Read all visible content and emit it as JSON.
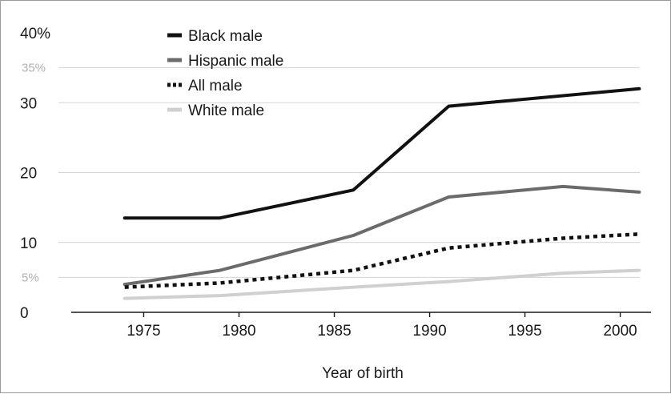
{
  "chart_data": {
    "type": "line",
    "xlabel": "Year of birth",
    "ylabel": "",
    "x_ticks": [
      1975,
      1980,
      1985,
      1990,
      1995,
      2000
    ],
    "xlim": [
      1971.2,
      2002.2
    ],
    "ylim": [
      0,
      40
    ],
    "y_ticks": [
      {
        "value": 0,
        "label": "0",
        "style": "major"
      },
      {
        "value": 5,
        "label": "5%",
        "style": "minor"
      },
      {
        "value": 10,
        "label": "10",
        "style": "major"
      },
      {
        "value": 20,
        "label": "20",
        "style": "major"
      },
      {
        "value": 30,
        "label": "30",
        "style": "major"
      },
      {
        "value": 35,
        "label": "35%",
        "style": "minor"
      },
      {
        "value": 40,
        "label": "40%",
        "style": "major"
      }
    ],
    "gridlines": [
      5,
      10,
      20,
      30,
      35
    ],
    "legend_position": "top-left",
    "series": [
      {
        "name": "Black male",
        "color": "#111111",
        "dash": "solid",
        "points": [
          [
            1974,
            13.5
          ],
          [
            1979,
            13.5
          ],
          [
            1986,
            17.5
          ],
          [
            1991,
            29.5
          ],
          [
            2001,
            32.0
          ]
        ]
      },
      {
        "name": "Hispanic male",
        "color": "#6b6b6b",
        "dash": "solid",
        "points": [
          [
            1974,
            4.0
          ],
          [
            1979,
            6.0
          ],
          [
            1986,
            11.0
          ],
          [
            1991,
            16.5
          ],
          [
            1997,
            18.0
          ],
          [
            2001,
            17.2
          ]
        ]
      },
      {
        "name": "All male",
        "color": "#111111",
        "dash": "dotted",
        "points": [
          [
            1974,
            3.6
          ],
          [
            1979,
            4.2
          ],
          [
            1986,
            6.0
          ],
          [
            1991,
            9.2
          ],
          [
            1997,
            10.6
          ],
          [
            2001,
            11.2
          ]
        ]
      },
      {
        "name": "White male",
        "color": "#d0d0d0",
        "dash": "solid",
        "points": [
          [
            1974,
            2.0
          ],
          [
            1979,
            2.4
          ],
          [
            1986,
            3.6
          ],
          [
            1991,
            4.4
          ],
          [
            1997,
            5.6
          ],
          [
            2001,
            6.0
          ]
        ]
      }
    ]
  }
}
